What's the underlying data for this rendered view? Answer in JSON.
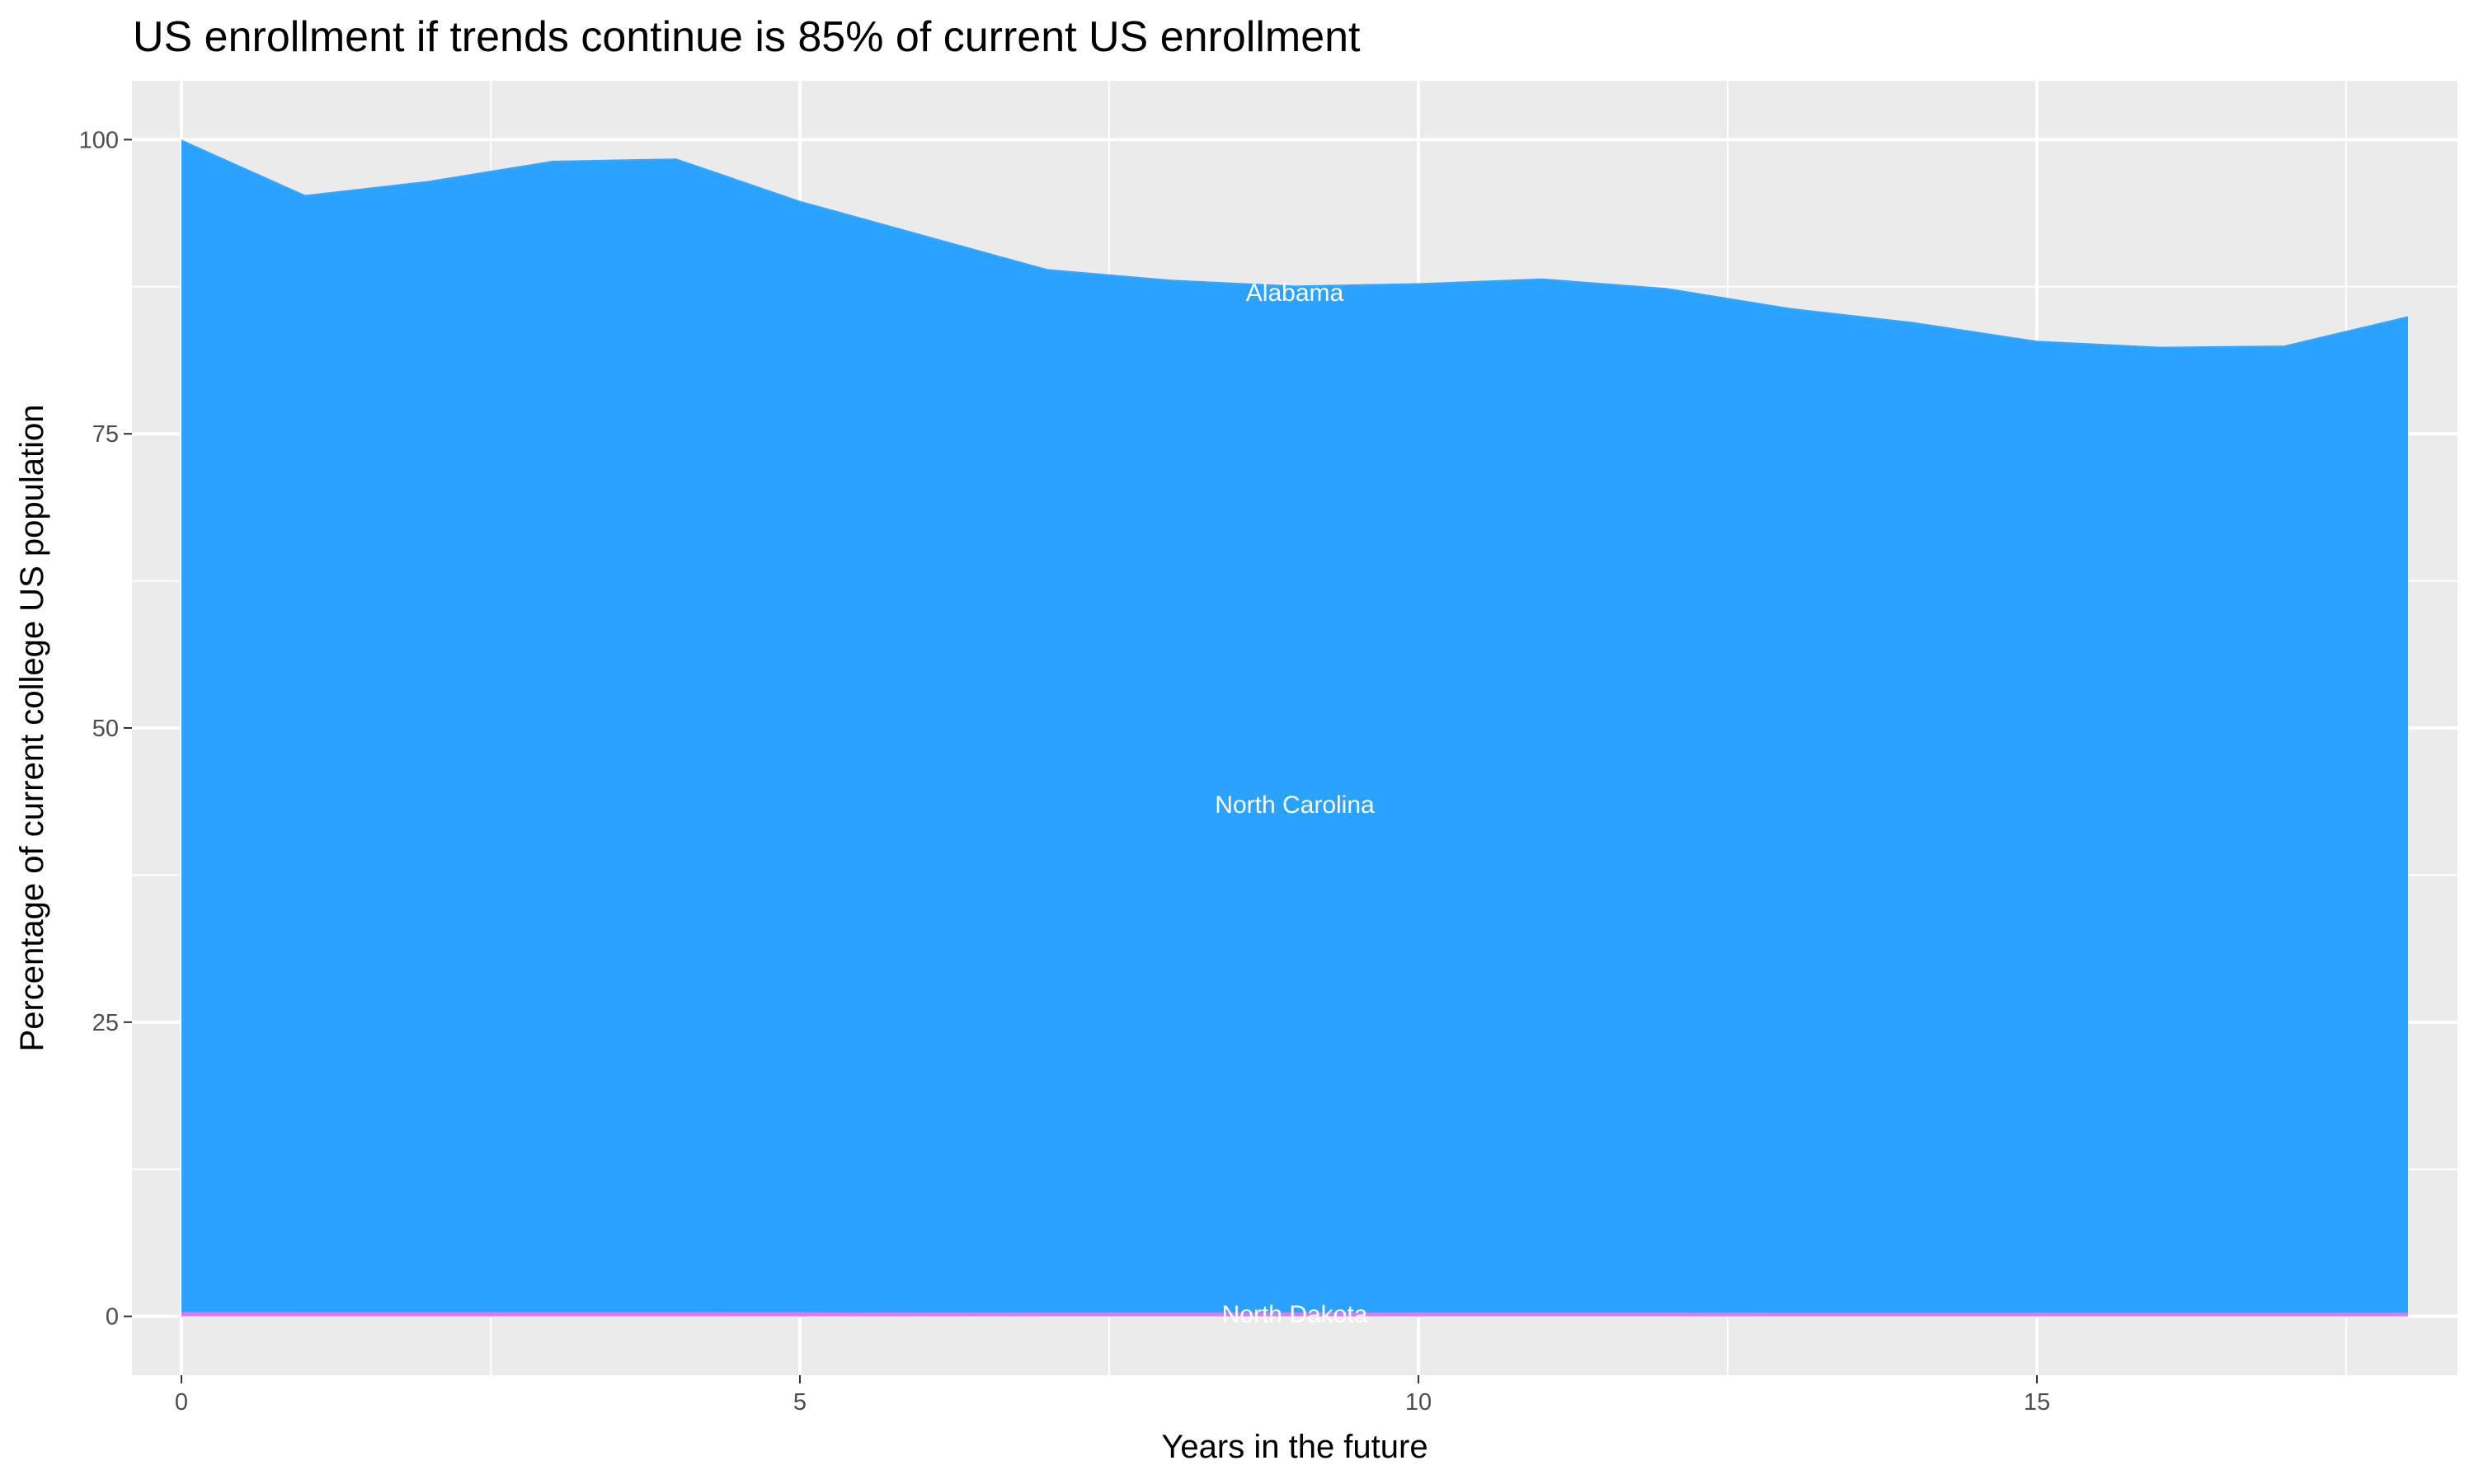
{
  "chart_data": {
    "type": "area",
    "stacked": true,
    "title": "US enrollment if trends continue is 85% of current US enrollment",
    "xlabel": "Years in the future",
    "ylabel": "Percentage of current college US population",
    "xlim": [
      -0.4,
      18.4
    ],
    "ylim": [
      -5,
      105
    ],
    "x_ticks": [
      0,
      5,
      10,
      15
    ],
    "y_ticks": [
      0,
      25,
      50,
      75,
      100
    ],
    "grid": true,
    "x": [
      0,
      1,
      2,
      3,
      4,
      5,
      6,
      7,
      8,
      9,
      10,
      11,
      12,
      13,
      14,
      15,
      16,
      17,
      18
    ],
    "series": [
      {
        "name": "North Dakota",
        "color": "#DE76FF",
        "values": [
          0.35,
          0.34,
          0.34,
          0.34,
          0.34,
          0.33,
          0.32,
          0.31,
          0.31,
          0.31,
          0.31,
          0.31,
          0.31,
          0.3,
          0.3,
          0.3,
          0.3,
          0.3,
          0.3
        ]
      },
      {
        "name": "North Carolina",
        "color": "#29A3FF",
        "values": [
          99.55,
          94.86,
          96.06,
          97.76,
          97.96,
          94.37,
          91.48,
          88.59,
          87.69,
          87.19,
          87.39,
          87.79,
          86.99,
          85.3,
          84.1,
          82.5,
          82.0,
          82.1,
          84.6
        ]
      },
      {
        "name": "Alabama",
        "color": "#29A3FF",
        "values": [
          0.1,
          0.1,
          0.1,
          0.1,
          0.1,
          0.1,
          0.1,
          0.1,
          0.1,
          0.1,
          0.1,
          0.1,
          0.1,
          0.1,
          0.1,
          0.1,
          0.1,
          0.1,
          0.1
        ]
      }
    ],
    "labels": [
      {
        "text": "Alabama",
        "x": 9,
        "y": 87
      },
      {
        "text": "North Carolina",
        "x": 9,
        "y": 43.5
      },
      {
        "text": "North Dakota",
        "x": 9,
        "y": 0.2
      }
    ],
    "colors": {
      "panel": "#EBEBEB",
      "grid": "#FFFFFF",
      "label_text": "#FFFFFF"
    }
  }
}
